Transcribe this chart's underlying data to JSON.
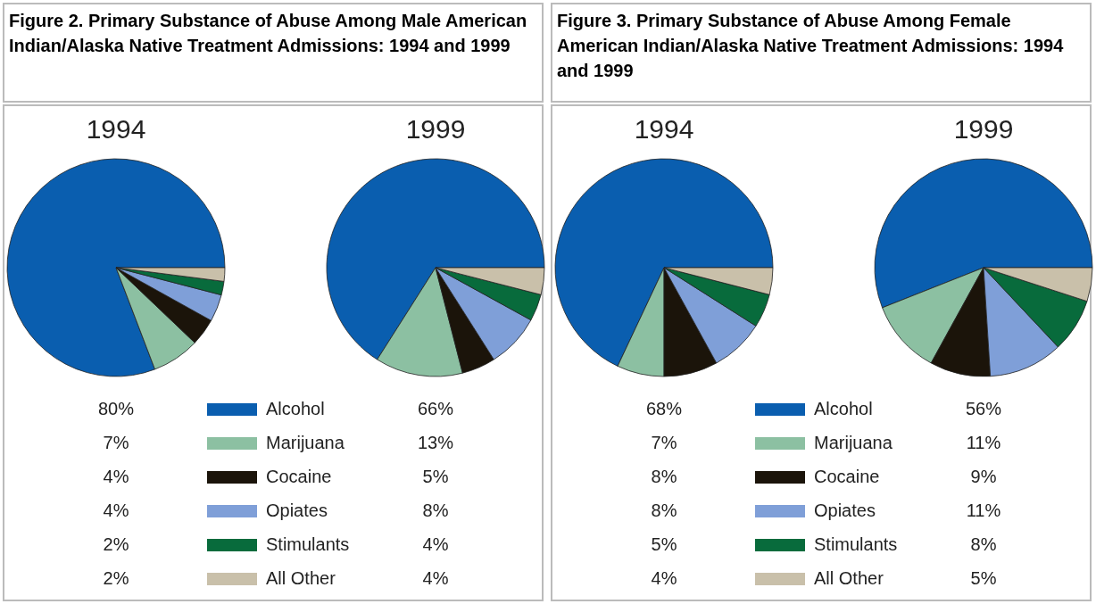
{
  "chart_data": [
    {
      "type": "pie",
      "title": "Figure 2. Primary Substance of Abuse Among Male American Indian/Alaska Native Treatment Admissions: 1994 and 1999",
      "categories": [
        "Alcohol",
        "Marijuana",
        "Cocaine",
        "Opiates",
        "Stimulants",
        "All Other"
      ],
      "colors": [
        "#0a5eaf",
        "#8cc0a2",
        "#1b140a",
        "#7f9fd8",
        "#086b3c",
        "#c9c0aa"
      ],
      "legend": "bottom",
      "series": [
        {
          "name": "1994",
          "values": [
            80,
            7,
            4,
            4,
            2,
            2
          ],
          "value_labels": [
            "80%",
            "7%",
            "4%",
            "4%",
            "2%",
            "2%"
          ]
        },
        {
          "name": "1999",
          "values": [
            66,
            13,
            5,
            8,
            4,
            4
          ],
          "value_labels": [
            "66%",
            "13%",
            "5%",
            "8%",
            "4%",
            "4%"
          ]
        }
      ]
    },
    {
      "type": "pie",
      "title": "Figure 3. Primary Substance of Abuse Among Female American Indian/Alaska Native Treatment Admissions: 1994 and 1999",
      "categories": [
        "Alcohol",
        "Marijuana",
        "Cocaine",
        "Opiates",
        "Stimulants",
        "All Other"
      ],
      "colors": [
        "#0a5eaf",
        "#8cc0a2",
        "#1b140a",
        "#7f9fd8",
        "#086b3c",
        "#c9c0aa"
      ],
      "legend": "bottom",
      "series": [
        {
          "name": "1994",
          "values": [
            68,
            7,
            8,
            8,
            5,
            4
          ],
          "value_labels": [
            "68%",
            "7%",
            "8%",
            "8%",
            "5%",
            "4%"
          ]
        },
        {
          "name": "1999",
          "values": [
            56,
            11,
            9,
            11,
            8,
            5
          ],
          "value_labels": [
            "56%",
            "11%",
            "9%",
            "11%",
            "8%",
            "5%"
          ]
        }
      ]
    }
  ]
}
